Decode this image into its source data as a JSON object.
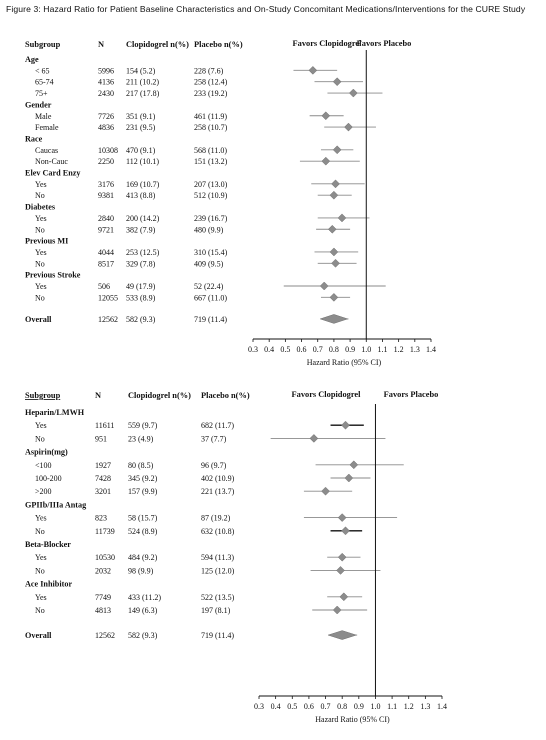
{
  "caption": "Figure 3: Hazard Ratio for Patient Baseline Characteristics and On-Study Concomitant Medications/Interventions for the CURE Study",
  "chart_data": [
    {
      "type": "forest",
      "headers": [
        "Subgroup",
        "N",
        "Clopidogrel n(%)",
        "Placebo n(%)"
      ],
      "favors_left": "Favors Clopidogrel",
      "favors_right": "Favors Placebo",
      "xlabel": "Hazard Ratio (95% CI)",
      "xlim": [
        0.3,
        1.4
      ],
      "xticks": [
        "0.3",
        "0.4",
        "0.5",
        "0.6",
        "0.7",
        "0.8",
        "0.9",
        "1.0",
        "1.1",
        "1.2",
        "1.3",
        "1.4"
      ],
      "reference_line": 1.0,
      "rows": [
        {
          "kind": "group",
          "label": "Age"
        },
        {
          "kind": "row",
          "label": "< 65",
          "n": "5996",
          "clop": "154 (5.2)",
          "plac": "228 (7.6)",
          "hr": 0.67,
          "lo": 0.55,
          "hi": 0.82
        },
        {
          "kind": "row",
          "label": "65-74",
          "n": "4136",
          "clop": "211 (10.2)",
          "plac": "258 (12.4)",
          "hr": 0.82,
          "lo": 0.68,
          "hi": 0.98
        },
        {
          "kind": "row",
          "label": "75+",
          "n": "2430",
          "clop": "217 (17.8)",
          "plac": "233 (19.2)",
          "hr": 0.92,
          "lo": 0.76,
          "hi": 1.1
        },
        {
          "kind": "group",
          "label": "Gender"
        },
        {
          "kind": "row",
          "label": "Male",
          "n": "7726",
          "clop": "351 (9.1)",
          "plac": "461 (11.9)",
          "hr": 0.75,
          "lo": 0.65,
          "hi": 0.86
        },
        {
          "kind": "row",
          "label": "Female",
          "n": "4836",
          "clop": "231 (9.5)",
          "plac": "258 (10.7)",
          "hr": 0.89,
          "lo": 0.74,
          "hi": 1.06
        },
        {
          "kind": "group",
          "label": "Race"
        },
        {
          "kind": "row",
          "label": "Caucas",
          "n": "10308",
          "clop": "470 (9.1)",
          "plac": "568 (11.0)",
          "hr": 0.82,
          "lo": 0.72,
          "hi": 0.92
        },
        {
          "kind": "row",
          "label": "Non-Cauc",
          "n": "2250",
          "clop": "112 (10.1)",
          "plac": "151 (13.2)",
          "hr": 0.75,
          "lo": 0.59,
          "hi": 0.96
        },
        {
          "kind": "group",
          "label": "Elev Card Enzy"
        },
        {
          "kind": "row",
          "label": "Yes",
          "n": "3176",
          "clop": "169 (10.7)",
          "plac": "207 (13.0)",
          "hr": 0.81,
          "lo": 0.66,
          "hi": 0.99
        },
        {
          "kind": "row",
          "label": "No",
          "n": "9381",
          "clop": "413 (8.8)",
          "plac": "512 (10.9)",
          "hr": 0.8,
          "lo": 0.7,
          "hi": 0.91
        },
        {
          "kind": "group",
          "label": "Diabetes"
        },
        {
          "kind": "row",
          "label": "Yes",
          "n": "2840",
          "clop": "200 (14.2)",
          "plac": "239 (16.7)",
          "hr": 0.85,
          "lo": 0.7,
          "hi": 1.02
        },
        {
          "kind": "row",
          "label": "No",
          "n": "9721",
          "clop": "382 (7.9)",
          "plac": "480 (9.9)",
          "hr": 0.79,
          "lo": 0.69,
          "hi": 0.9
        },
        {
          "kind": "group",
          "label": "Previous MI"
        },
        {
          "kind": "row",
          "label": "Yes",
          "n": "4044",
          "clop": "253 (12.5)",
          "plac": "310 (15.4)",
          "hr": 0.8,
          "lo": 0.68,
          "hi": 0.95
        },
        {
          "kind": "row",
          "label": "No",
          "n": "8517",
          "clop": "329 (7.8)",
          "plac": "409 (9.5)",
          "hr": 0.81,
          "lo": 0.7,
          "hi": 0.94
        },
        {
          "kind": "group",
          "label": "Previous Stroke"
        },
        {
          "kind": "row",
          "label": "Yes",
          "n": "506",
          "clop": "49 (17.9)",
          "plac": "52 (22.4)",
          "hr": 0.74,
          "lo": 0.49,
          "hi": 1.12
        },
        {
          "kind": "row",
          "label": "No",
          "n": "12055",
          "clop": "533 (8.9)",
          "plac": "667 (11.0)",
          "hr": 0.8,
          "lo": 0.72,
          "hi": 0.9
        },
        {
          "kind": "gap"
        },
        {
          "kind": "overall",
          "label": "Overall",
          "n": "12562",
          "clop": "582 (9.3)",
          "plac": "719 (11.4)",
          "hr": 0.8,
          "lo": 0.72,
          "hi": 0.89
        }
      ]
    },
    {
      "type": "forest",
      "headers": [
        "Subgroup",
        "N",
        "Clopidogrel n(%)",
        "Placebo n(%)"
      ],
      "favors_left": "Favors Clopidogrel",
      "favors_right": "Favors Placebo",
      "xlabel": "Hazard Ratio (95% CI)",
      "xlim": [
        0.3,
        1.4
      ],
      "xticks": [
        "0.3",
        "0.4",
        "0.5",
        "0.6",
        "0.7",
        "0.8",
        "0.9",
        "1.0",
        "1.1",
        "1.2",
        "1.3",
        "1.4"
      ],
      "reference_line": 1.0,
      "rows": [
        {
          "kind": "group",
          "label": "Heparin/LMWH"
        },
        {
          "kind": "row",
          "label": "Yes",
          "n": "11611",
          "clop": "559 (9.7)",
          "plac": "682 (11.7)",
          "hr": 0.82,
          "lo": 0.73,
          "hi": 0.93,
          "thick": true
        },
        {
          "kind": "row",
          "label": "No",
          "n": "951",
          "clop": "23 (4.9)",
          "plac": "37 (7.7)",
          "hr": 0.63,
          "lo": 0.37,
          "hi": 1.06
        },
        {
          "kind": "group",
          "label": "Aspirin(mg)"
        },
        {
          "kind": "row",
          "label": "<100",
          "n": "1927",
          "clop": "80 (8.5)",
          "plac": "96 (9.7)",
          "hr": 0.87,
          "lo": 0.64,
          "hi": 1.17
        },
        {
          "kind": "row",
          "label": "100-200",
          "n": "7428",
          "clop": "345 (9.2)",
          "plac": "402 (10.9)",
          "hr": 0.84,
          "lo": 0.73,
          "hi": 0.97
        },
        {
          "kind": "row",
          "label": ">200",
          "n": "3201",
          "clop": "157 (9.9)",
          "plac": "221 (13.7)",
          "hr": 0.7,
          "lo": 0.57,
          "hi": 0.86
        },
        {
          "kind": "group",
          "label": "GPIIb/IIIa Antag"
        },
        {
          "kind": "row",
          "label": "Yes",
          "n": "823",
          "clop": "58 (15.7)",
          "plac": "87 (19.2)",
          "hr": 0.8,
          "lo": 0.57,
          "hi": 1.13
        },
        {
          "kind": "row",
          "label": "No",
          "n": "11739",
          "clop": "524 (8.9)",
          "plac": "632 (10.8)",
          "hr": 0.82,
          "lo": 0.73,
          "hi": 0.92,
          "thick": true
        },
        {
          "kind": "group",
          "label": "Beta-Blocker"
        },
        {
          "kind": "row",
          "label": "Yes",
          "n": "10530",
          "clop": "484 (9.2)",
          "plac": "594 (11.3)",
          "hr": 0.8,
          "lo": 0.71,
          "hi": 0.91
        },
        {
          "kind": "row",
          "label": "No",
          "n": "2032",
          "clop": "98 (9.9)",
          "plac": "125 (12.0)",
          "hr": 0.79,
          "lo": 0.61,
          "hi": 1.03
        },
        {
          "kind": "group",
          "label": "Ace Inhibitor"
        },
        {
          "kind": "row",
          "label": "Yes",
          "n": "7749",
          "clop": "433 (11.2)",
          "plac": "522 (13.5)",
          "hr": 0.81,
          "lo": 0.71,
          "hi": 0.92
        },
        {
          "kind": "row",
          "label": "No",
          "n": "4813",
          "clop": "149 (6.3)",
          "plac": "197 (8.1)",
          "hr": 0.77,
          "lo": 0.62,
          "hi": 0.95
        },
        {
          "kind": "gap"
        },
        {
          "kind": "overall",
          "label": "Overall",
          "n": "12562",
          "clop": "582 (9.3)",
          "plac": "719 (11.4)",
          "hr": 0.8,
          "lo": 0.72,
          "hi": 0.89
        }
      ]
    }
  ]
}
